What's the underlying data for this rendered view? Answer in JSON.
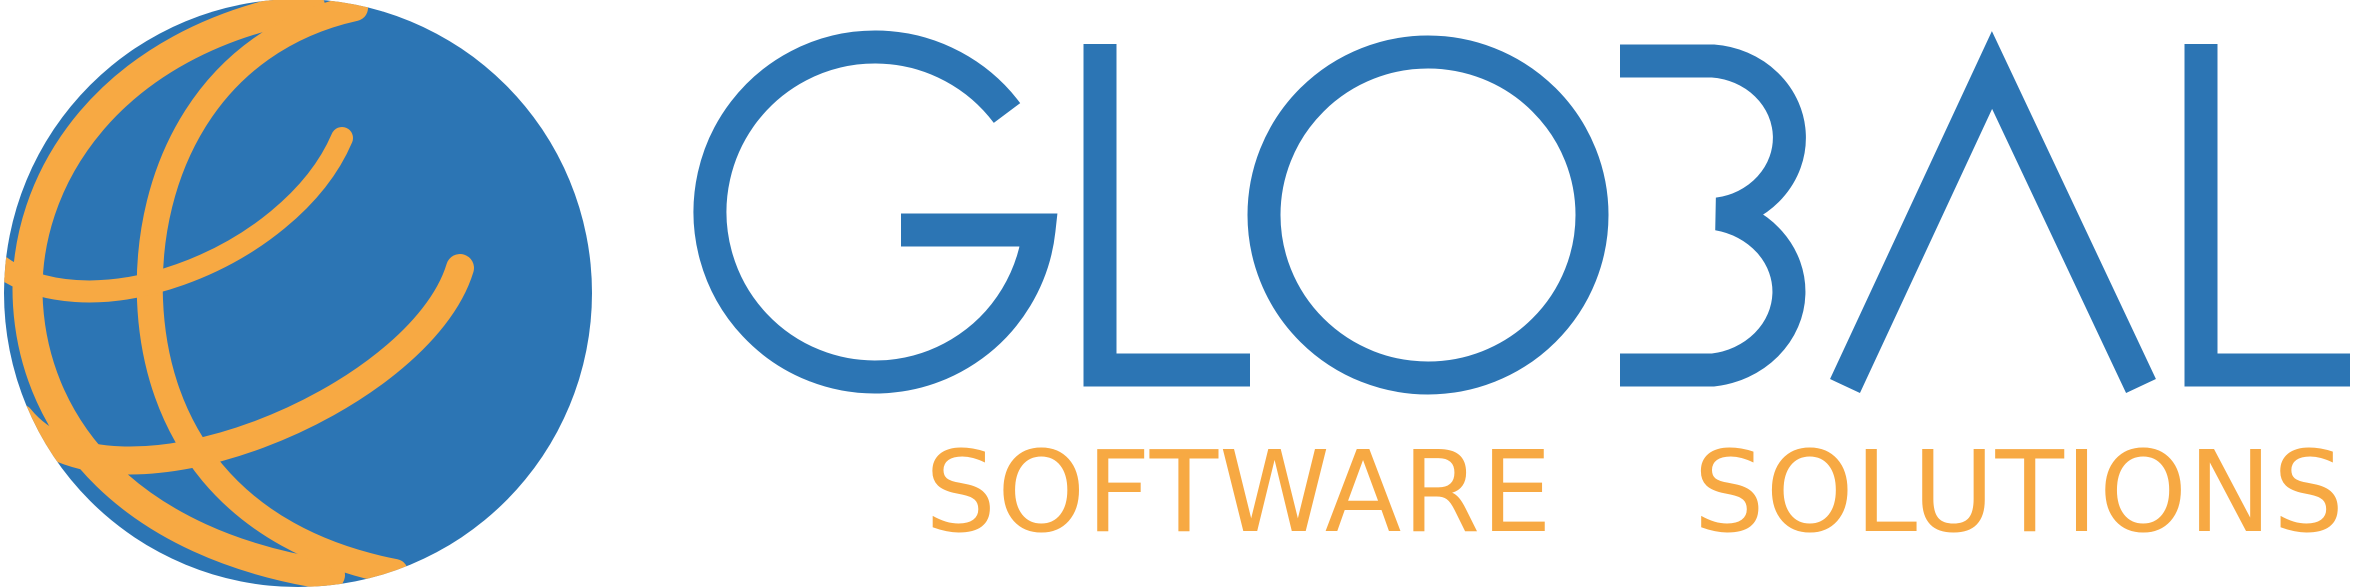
{
  "brand": {
    "name": "GLOBAL",
    "tagline": "SOFTWARE SOLUTIONS"
  },
  "colors": {
    "primary_blue": "#2c75b4",
    "accent_orange": "#f7a943",
    "background": "#ffffff"
  },
  "icons": {
    "emblem": "globe-icon"
  }
}
